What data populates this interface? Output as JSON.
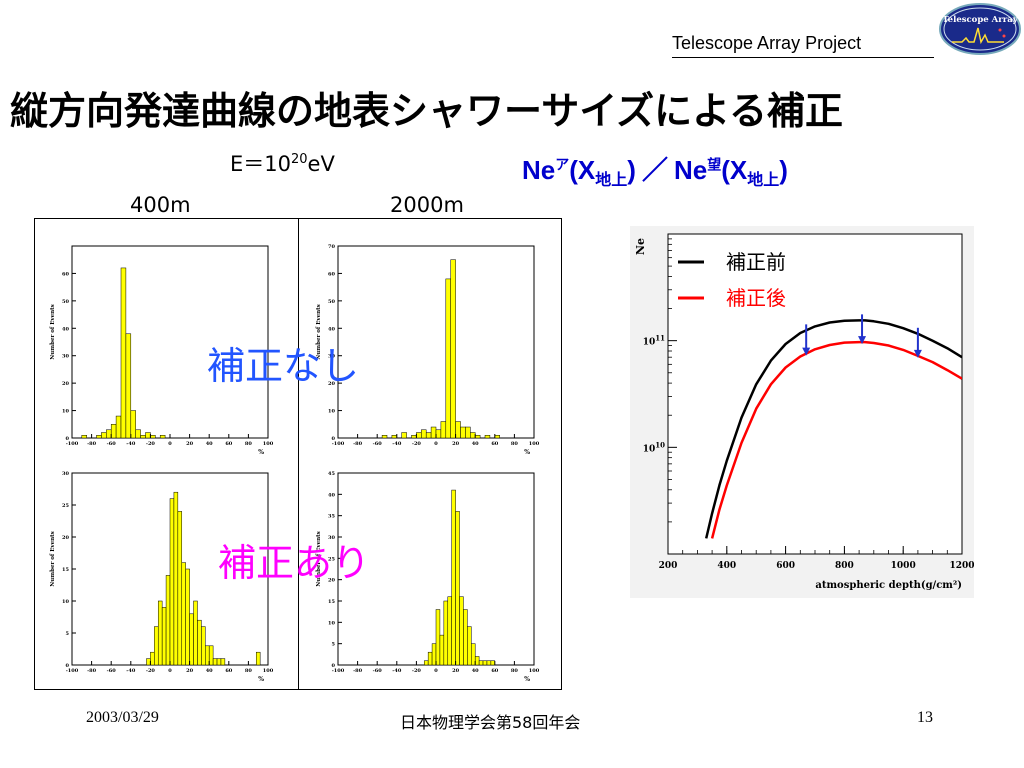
{
  "header": {
    "project": "Telescope Array Project",
    "logo_text": "Telescope Array"
  },
  "slide": {
    "title": "縦方向発達曲線の地表シャワーサイズによる補正",
    "energy_label": "E＝10",
    "energy_exp": "20",
    "energy_unit": "eV",
    "col_left": "400m",
    "col_right": "2000m",
    "overlay_before": "補正なし",
    "overlay_after": "補正あり",
    "ne_title": {
      "ne": "Ne",
      "sup1": "ア",
      "paren_open": "(X",
      "sub": "地上",
      "paren_close": ")",
      "sep": "／",
      "sup2": "望"
    }
  },
  "footer": {
    "date": "2003/03/29",
    "conference": "日本物理学会第58回年会",
    "page": "13"
  },
  "colors": {
    "hist_fill": "#ffff00",
    "overlay_before": "#2255ff",
    "overlay_after": "#ff00ff",
    "before_line": "#000000",
    "after_line": "#ff0000",
    "arrow": "#2233cc",
    "logo_bg": "#1a2a8a"
  },
  "chart_data": [
    {
      "type": "bar",
      "id": "hist-400m-before",
      "ylabel": "Number of Events",
      "xlabel": "%",
      "xlim": [
        -100,
        100
      ],
      "ylim": [
        0,
        70
      ],
      "xticks": [
        -100,
        -80,
        -60,
        -40,
        -20,
        0,
        20,
        40,
        60,
        80,
        100
      ],
      "yticks": [
        0,
        10,
        20,
        30,
        40,
        50,
        60
      ],
      "bin_start": -100,
      "bin_width": 5,
      "values": [
        0,
        0,
        1,
        0,
        0,
        1,
        2,
        3,
        5,
        8,
        62,
        38,
        10,
        3,
        1,
        2,
        1,
        0,
        1,
        0,
        0,
        0,
        0,
        0,
        0,
        0,
        0,
        0,
        0,
        0,
        0,
        0,
        0,
        0,
        0,
        0,
        0,
        0,
        0,
        0
      ]
    },
    {
      "type": "bar",
      "id": "hist-2000m-before",
      "ylabel": "Number of Events",
      "xlabel": "%",
      "xlim": [
        -100,
        100
      ],
      "ylim": [
        0,
        70
      ],
      "xticks": [
        -100,
        -80,
        -60,
        -40,
        -20,
        0,
        20,
        40,
        60,
        80,
        100
      ],
      "yticks": [
        0,
        10,
        20,
        30,
        40,
        50,
        60,
        70
      ],
      "bin_start": -100,
      "bin_width": 5,
      "values": [
        0,
        0,
        0,
        0,
        0,
        0,
        0,
        0,
        0,
        1,
        0,
        1,
        0,
        2,
        0,
        1,
        2,
        3,
        2,
        4,
        3,
        6,
        58,
        65,
        6,
        4,
        4,
        2,
        1,
        0,
        1,
        0,
        1,
        0,
        0,
        0,
        0,
        0,
        0,
        0
      ]
    },
    {
      "type": "bar",
      "id": "hist-400m-after",
      "ylabel": "Number of Events",
      "xlabel": "%",
      "xlim": [
        -100,
        100
      ],
      "ylim": [
        0,
        30
      ],
      "xticks": [
        -100,
        -80,
        -60,
        -40,
        -20,
        0,
        20,
        40,
        60,
        80,
        100
      ],
      "yticks": [
        0,
        5,
        10,
        15,
        20,
        25,
        30
      ],
      "bin_start": -100,
      "bin_width": 4,
      "values": [
        0,
        0,
        0,
        0,
        0,
        0,
        0,
        0,
        0,
        0,
        0,
        0,
        0,
        0,
        0,
        0,
        0,
        0,
        0,
        1,
        2,
        6,
        10,
        9,
        14,
        26,
        27,
        24,
        16,
        15,
        8,
        10,
        7,
        6,
        3,
        3,
        1,
        1,
        1,
        0,
        0,
        0,
        0,
        0,
        0,
        0,
        0,
        2,
        0,
        0
      ]
    },
    {
      "type": "bar",
      "id": "hist-2000m-after",
      "ylabel": "Number of Events",
      "xlabel": "%",
      "xlim": [
        -100,
        100
      ],
      "ylim": [
        0,
        45
      ],
      "xticks": [
        -100,
        -80,
        -60,
        -40,
        -20,
        0,
        20,
        40,
        60,
        80,
        100
      ],
      "yticks": [
        0,
        5,
        10,
        15,
        20,
        25,
        30,
        35,
        40,
        45
      ],
      "bin_start": -100,
      "bin_width": 4,
      "values": [
        0,
        0,
        0,
        0,
        0,
        0,
        0,
        0,
        0,
        0,
        0,
        0,
        0,
        0,
        0,
        0,
        0,
        0,
        0,
        0,
        0,
        0,
        1,
        3,
        5,
        13,
        7,
        15,
        16,
        41,
        36,
        16,
        13,
        9,
        5,
        2,
        1,
        1,
        1,
        1,
        0,
        0,
        0,
        0,
        0,
        0,
        0,
        0,
        0,
        0
      ]
    },
    {
      "type": "line",
      "id": "ne-curve",
      "xlabel": "atmospheric depth(g/cm²)",
      "ylabel": "Ne",
      "xlim": [
        200,
        1200
      ],
      "ylim": [
        1000000000.0,
        1000000000000.0
      ],
      "ylog": true,
      "xticks": [
        200,
        400,
        600,
        800,
        1000,
        1200
      ],
      "yticks": [
        {
          "base": "10",
          "exp": "10",
          "value": 10000000000.0
        },
        {
          "base": "10",
          "exp": "11",
          "value": 100000000000.0
        }
      ],
      "legend": [
        {
          "name": "補正前",
          "color": "#000000"
        },
        {
          "name": "補正後",
          "color": "#ff0000"
        }
      ],
      "series": [
        {
          "name": "補正前",
          "color": "#000000",
          "x": [
            330,
            350,
            375,
            400,
            450,
            500,
            550,
            600,
            650,
            700,
            750,
            800,
            850,
            870,
            900,
            950,
            1000,
            1050,
            1100,
            1150,
            1200
          ],
          "y": [
            1400000000.0,
            2400000000.0,
            4400000000.0,
            7500000000.0,
            19000000000.0,
            39000000000.0,
            65000000000.0,
            93000000000.0,
            118000000000.0,
            136000000000.0,
            148000000000.0,
            154000000000.0,
            155000000000.0,
            155000000000.0,
            152000000000.0,
            144000000000.0,
            131000000000.0,
            116000000000.0,
            100000000000.0,
            85000000000.0,
            70000000000.0
          ]
        },
        {
          "name": "補正後",
          "color": "#ff0000",
          "x": [
            350,
            375,
            400,
            450,
            500,
            550,
            600,
            650,
            700,
            750,
            800,
            850,
            870,
            900,
            950,
            1000,
            1050,
            1100,
            1150,
            1200
          ],
          "y": [
            1400000000.0,
            2600000000.0,
            4400000000.0,
            11000000000.0,
            23000000000.0,
            39000000000.0,
            56000000000.0,
            71000000000.0,
            83000000000.0,
            91000000000.0,
            96000000000.0,
            97000000000.0,
            97000000000.0,
            95000000000.0,
            90000000000.0,
            82000000000.0,
            72000000000.0,
            63000000000.0,
            53000000000.0,
            44000000000.0
          ]
        }
      ],
      "arrows_x": [
        670,
        860,
        1050
      ]
    }
  ]
}
